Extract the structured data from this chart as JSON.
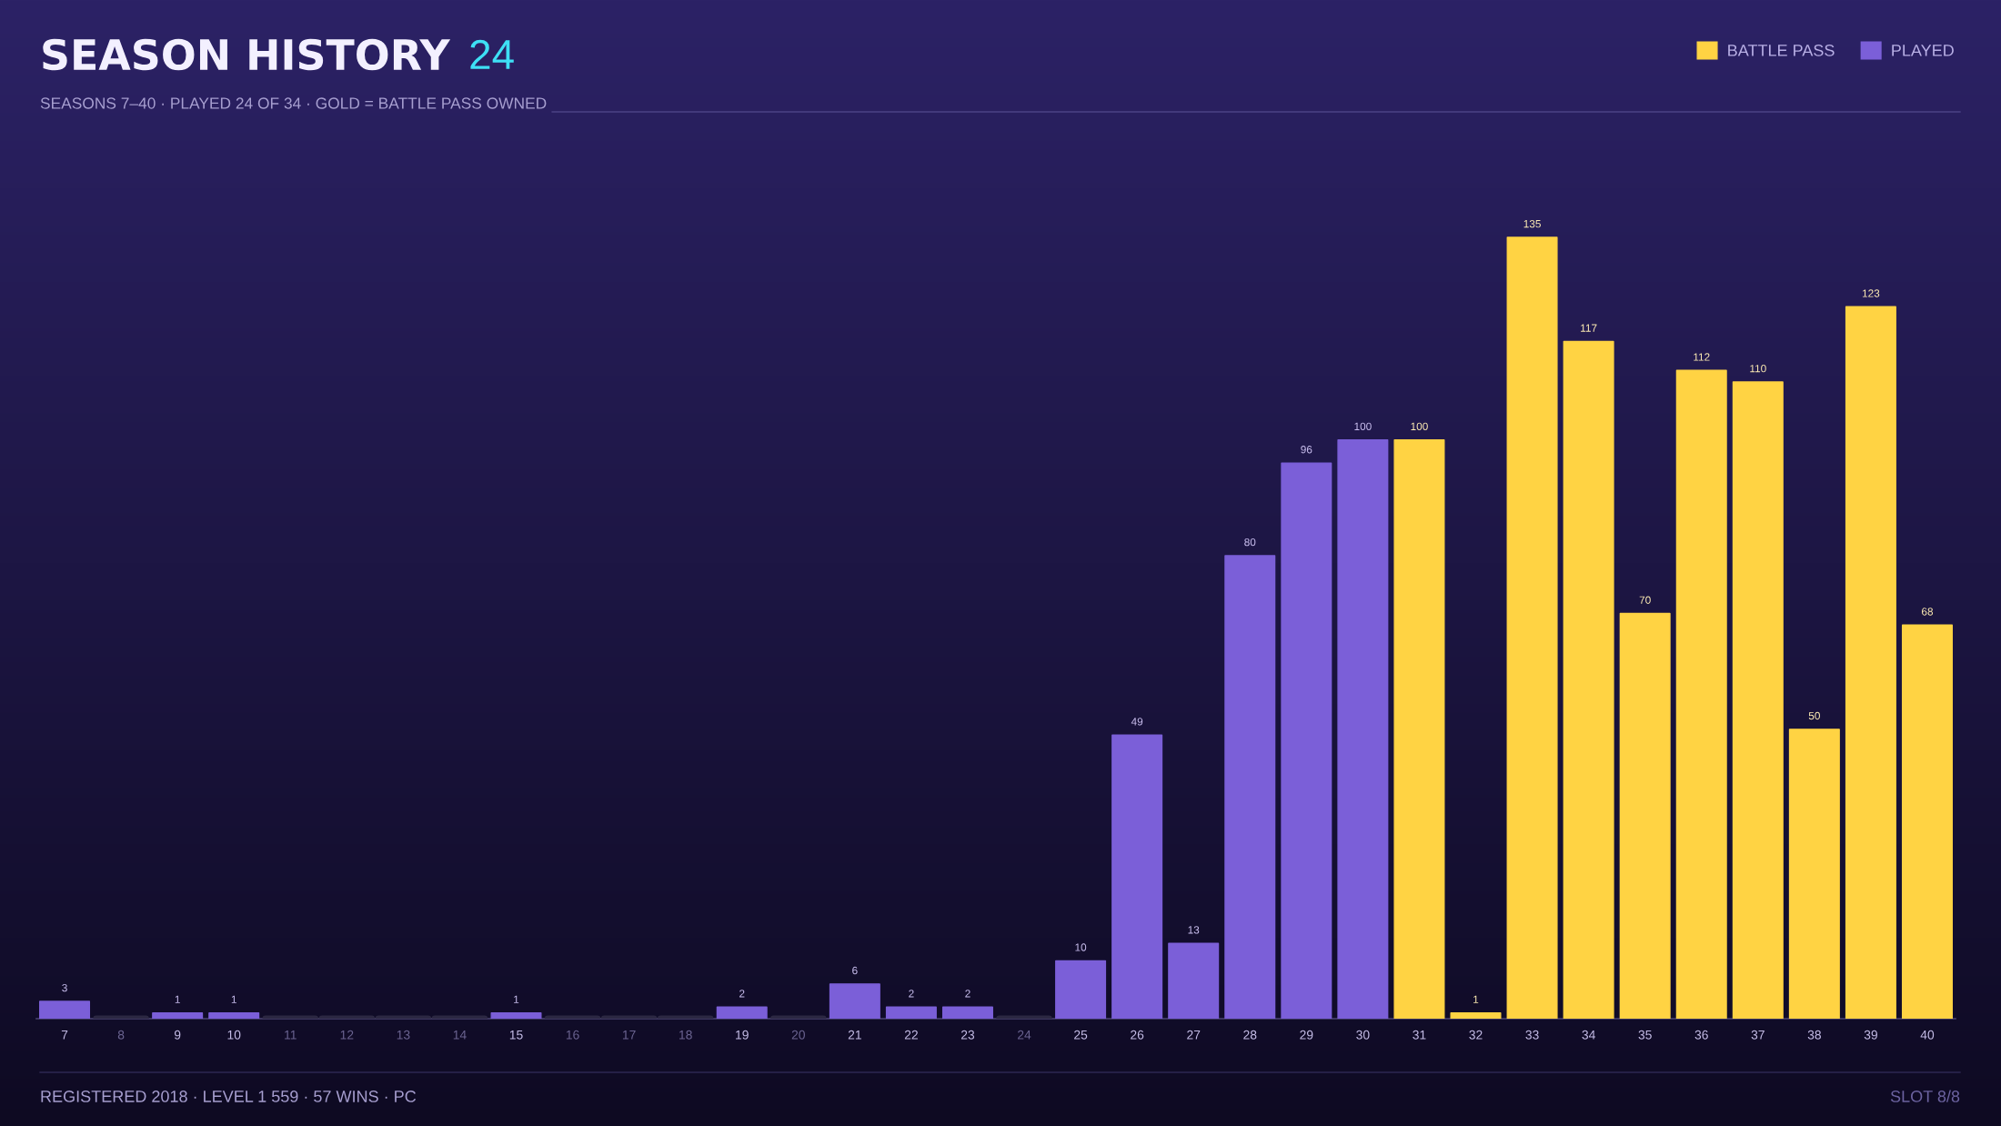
{
  "chart_data": {
    "type": "bar",
    "title": "SEASON HISTORY",
    "subtitle": "SEASONS 7–40 · PLAYED 24 OF 34 · GOLD = BATTLE PASS OWNED",
    "annotations": [
      "24",
      "REGISTERED 2018 · LEVEL 1 559 · 57 WINS · PC",
      "SLOT 8/8"
    ],
    "categories": [
      "7",
      "8",
      "9",
      "10",
      "11",
      "12",
      "13",
      "14",
      "15",
      "16",
      "17",
      "18",
      "19",
      "20",
      "21",
      "22",
      "23",
      "24",
      "25",
      "26",
      "27",
      "28",
      "29",
      "30",
      "31",
      "32",
      "33",
      "34",
      "35",
      "36",
      "37",
      "38",
      "39",
      "40"
    ],
    "series": [
      {
        "name": "BATTLE PASS",
        "color": "#ffd343",
        "values": [
          null,
          null,
          null,
          null,
          null,
          null,
          null,
          null,
          null,
          null,
          null,
          null,
          null,
          null,
          null,
          null,
          null,
          null,
          null,
          null,
          null,
          null,
          null,
          null,
          100,
          1,
          135,
          117,
          70,
          112,
          110,
          50,
          123,
          68
        ],
        "value_labels": [
          null,
          null,
          null,
          null,
          null,
          null,
          null,
          null,
          null,
          null,
          null,
          null,
          null,
          null,
          null,
          null,
          null,
          null,
          null,
          null,
          null,
          null,
          null,
          null,
          "100",
          "1",
          "135",
          "117",
          "70",
          "112",
          "110",
          "50",
          "123",
          "68"
        ]
      },
      {
        "name": "PLAYED",
        "color": "#7b5fd8",
        "values": [
          3,
          null,
          1,
          1,
          null,
          null,
          null,
          null,
          1,
          null,
          null,
          null,
          2,
          null,
          6,
          2,
          2,
          null,
          10,
          49,
          13,
          80,
          96,
          100,
          null,
          null,
          null,
          null,
          null,
          null,
          null,
          null,
          null,
          null
        ],
        "value_labels": [
          "3",
          null,
          "1",
          "1",
          null,
          null,
          null,
          null,
          "1",
          null,
          null,
          null,
          "2",
          null,
          "6",
          "2",
          "2",
          null,
          "10",
          "49",
          "13",
          "80",
          "96",
          "100",
          null,
          null,
          null,
          null,
          null,
          null,
          null,
          null,
          null,
          null
        ]
      },
      {
        "color": "#2c2842",
        "values": [
          null,
          0,
          null,
          null,
          0,
          0,
          0,
          0,
          null,
          0,
          0,
          0,
          null,
          0,
          null,
          null,
          null,
          0,
          null,
          null,
          null,
          null,
          null,
          null,
          null,
          null,
          null,
          null,
          null,
          null,
          null,
          null,
          null,
          null
        ]
      }
    ],
    "legend": "top right",
    "tick_labels": "x"
  }
}
